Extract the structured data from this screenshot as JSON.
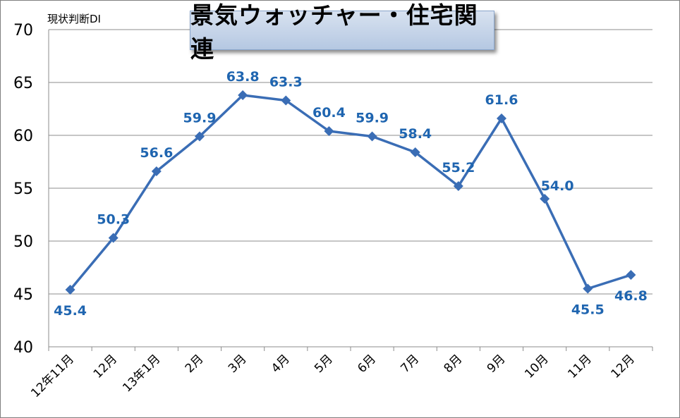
{
  "chart_data": {
    "type": "line",
    "title": "景気ウォッチャー・住宅関連",
    "ylabel": "現状判断DI",
    "xlabel": "",
    "ylim": [
      40,
      70
    ],
    "yticks": [
      40,
      45,
      50,
      55,
      60,
      65,
      70
    ],
    "grid": true,
    "legend": "none",
    "categories": [
      "12年11月",
      "12月",
      "13年1月",
      "2月",
      "3月",
      "4月",
      "5月",
      "6月",
      "7月",
      "8月",
      "9月",
      "10月",
      "11月",
      "12月"
    ],
    "series": [
      {
        "values": [
          45.4,
          50.3,
          56.6,
          59.9,
          63.8,
          63.3,
          60.4,
          59.9,
          58.4,
          55.2,
          61.6,
          54.0,
          45.5,
          46.8
        ],
        "data_labels": [
          "45.4",
          "50.3",
          "56.6",
          "59.9",
          "63.8",
          "63.3",
          "60.4",
          "59.9",
          "58.4",
          "55.2",
          "61.6",
          "54.0",
          "45.5",
          "46.8"
        ],
        "color": "#3a6db5",
        "label_color": "#1f65b0"
      }
    ]
  }
}
